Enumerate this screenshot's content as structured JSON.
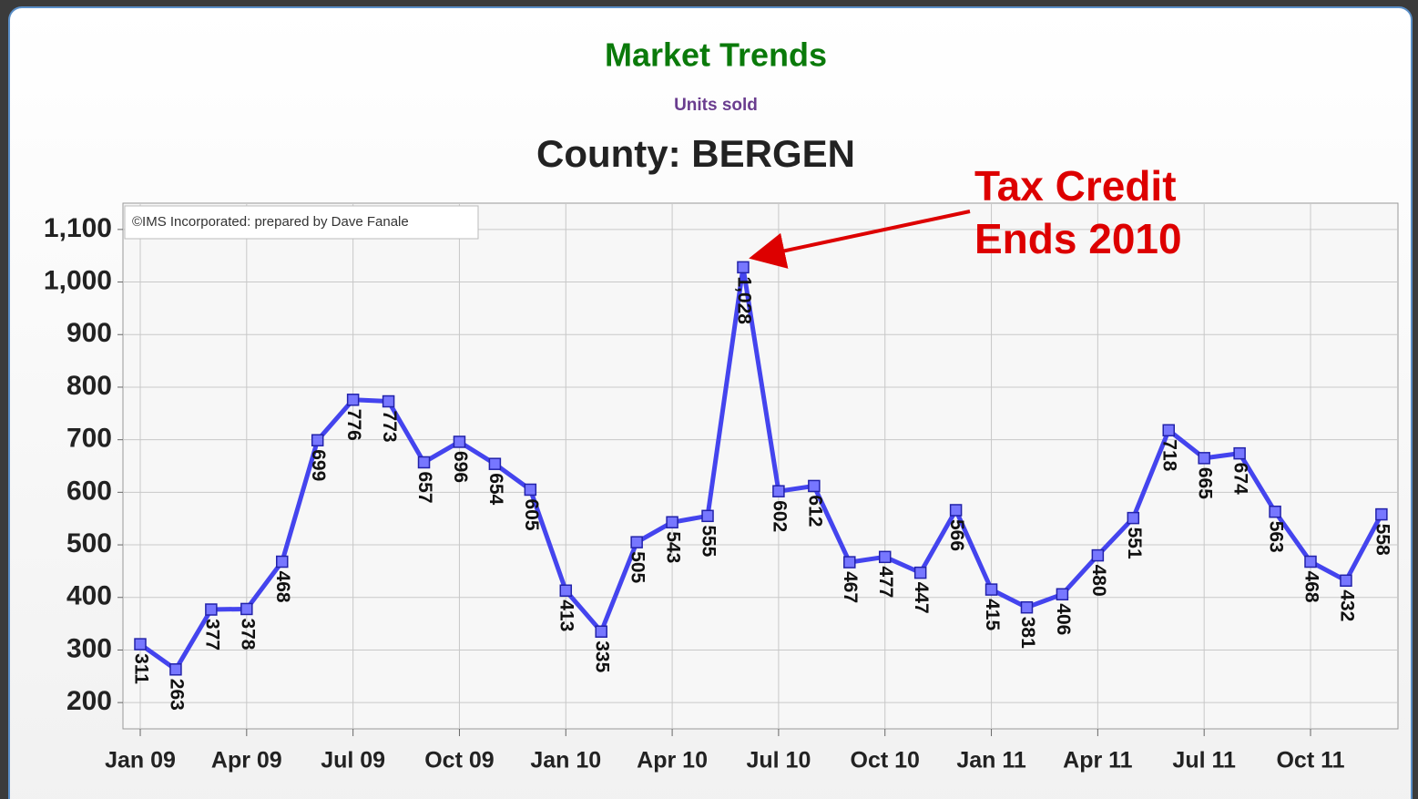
{
  "chart_data": {
    "type": "line",
    "title": "Market Trends",
    "subtitle": "Units sold",
    "heading": "County: BERGEN",
    "credit": "©IMS Incorporated: prepared by Dave Fanale",
    "annotation": [
      "Tax Credit",
      "Ends 2010"
    ],
    "categories": [
      "Jan 09",
      null,
      null,
      "Apr 09",
      null,
      null,
      "Jul 09",
      null,
      null,
      "Oct 09",
      null,
      null,
      "Jan 10",
      null,
      null,
      "Apr 10",
      null,
      null,
      "Jul 10",
      null,
      null,
      "Oct 10",
      null,
      null,
      "Jan 11",
      null,
      null,
      "Apr 11",
      null,
      null,
      "Jul 11",
      null,
      null,
      "Oct 11",
      null,
      null
    ],
    "series": [
      {
        "name": "Units sold",
        "color": "#4444ee",
        "values": [
          311,
          263,
          377,
          378,
          468,
          699,
          776,
          773,
          657,
          696,
          654,
          605,
          413,
          335,
          505,
          543,
          555,
          1028,
          602,
          612,
          467,
          477,
          447,
          566,
          415,
          381,
          406,
          480,
          551,
          718,
          665,
          674,
          563,
          468,
          432,
          558
        ],
        "value_labels": [
          "311",
          "263",
          "377",
          "378",
          "468",
          "699",
          "776",
          "773",
          "657",
          "696",
          "654",
          "605",
          "413",
          "335",
          "505",
          "543",
          "555",
          "1,028",
          "602",
          "612",
          "467",
          "477",
          "447",
          "566",
          "415",
          "381",
          "406",
          "480",
          "551",
          "718",
          "665",
          "674",
          "563",
          "468",
          "432",
          "558"
        ]
      }
    ],
    "ylim": [
      150,
      1150
    ],
    "yticks": [
      200,
      300,
      400,
      500,
      600,
      700,
      800,
      900,
      {
        "value": 1000,
        "label": "1,000"
      },
      {
        "value": 1100,
        "label": "1,100"
      }
    ],
    "grid": true,
    "title_color": "#0a7a0a",
    "subtitle_color": "#6a3d8f",
    "annotation_color": "#dd0000"
  }
}
